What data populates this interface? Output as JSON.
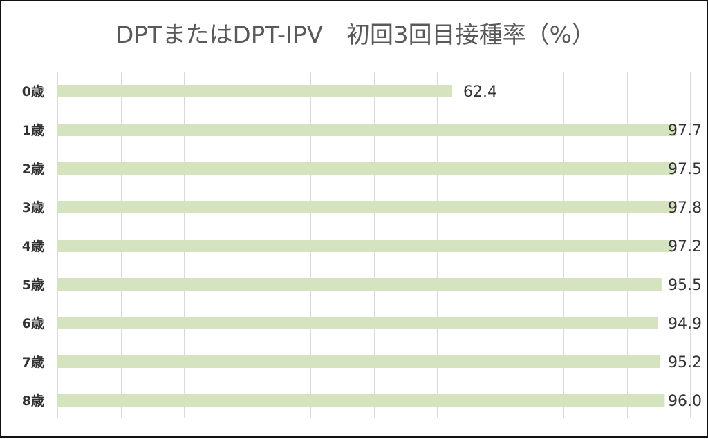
{
  "chart_data": {
    "type": "bar",
    "orientation": "horizontal",
    "title": "DPTまたはDPT-IPV　初回3回目接種率（%）",
    "categories": [
      "0歳",
      "1歳",
      "2歳",
      "3歳",
      "4歳",
      "5歳",
      "6歳",
      "7歳",
      "8歳"
    ],
    "values": [
      62.4,
      97.7,
      97.5,
      97.8,
      97.2,
      95.5,
      94.9,
      95.2,
      96.0
    ],
    "value_labels": [
      "62.4",
      "97.7",
      "97.5",
      "97.8",
      "97.2",
      "95.5",
      "94.9",
      "95.2",
      "96.0"
    ],
    "xlim": [
      0,
      100
    ],
    "gridlines": "vertical",
    "grid": true,
    "legend": "none",
    "bar_color": "#d6e3bf",
    "grid_color": "#d9d9d9"
  }
}
